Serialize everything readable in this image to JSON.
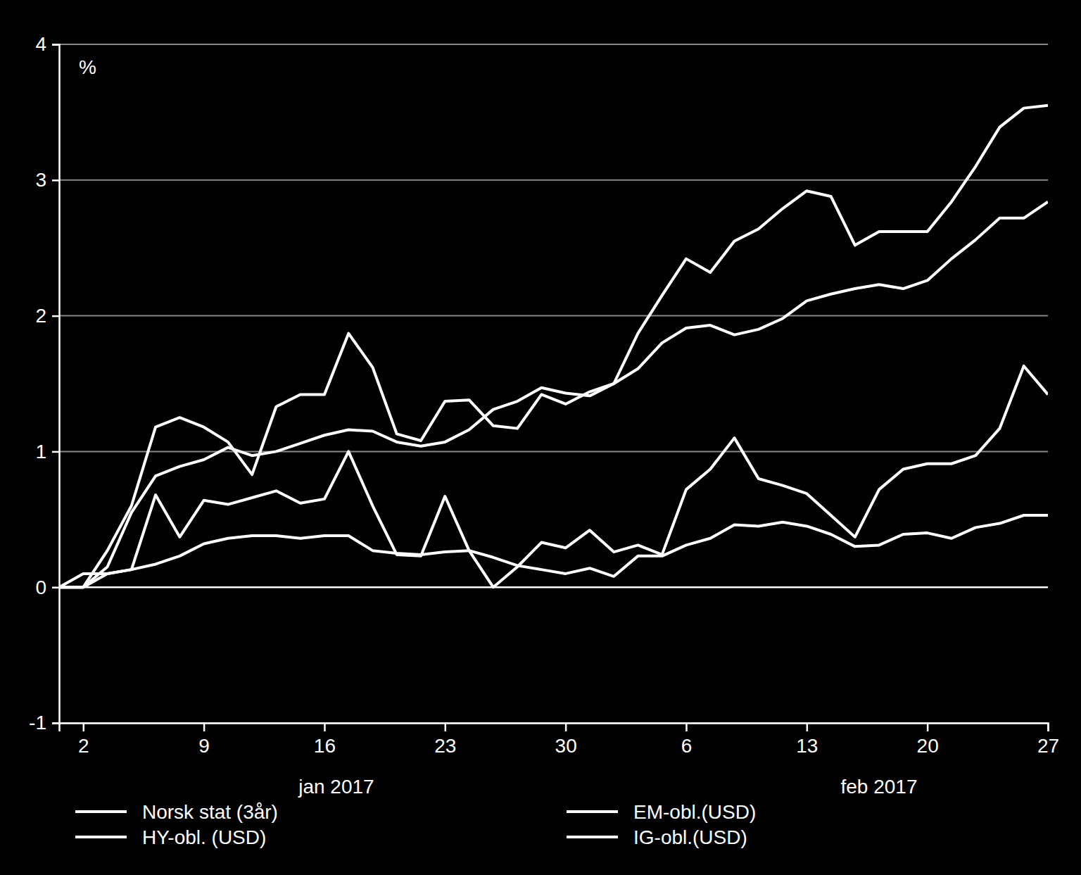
{
  "chart_data": {
    "type": "line",
    "ylabel": "%",
    "categories": [
      null,
      "2",
      null,
      null,
      null,
      null,
      "9",
      null,
      null,
      null,
      null,
      "16",
      null,
      null,
      null,
      null,
      "23",
      null,
      null,
      null,
      null,
      "30",
      null,
      null,
      null,
      null,
      "6",
      null,
      null,
      null,
      null,
      "13",
      null,
      null,
      null,
      null,
      "20",
      null,
      null,
      null,
      null,
      "27"
    ],
    "x_groups": [
      "jan 2017",
      "feb 2017"
    ],
    "ylim": [
      -1,
      4
    ],
    "yticks": [
      -1,
      0,
      1,
      2,
      3,
      4
    ],
    "grid": true,
    "legend": "bottom",
    "series": [
      {
        "name": "Norsk stat (3år)",
        "color": "#ffffff",
        "values": [
          0,
          0.1,
          0.1,
          0.13,
          0.17,
          0.23,
          0.32,
          0.36,
          0.38,
          0.38,
          0.36,
          0.38,
          0.38,
          0.27,
          0.25,
          0.24,
          0.26,
          0.27,
          0.22,
          0.16,
          0.13,
          0.1,
          0.14,
          0.08,
          0.23,
          0.23,
          0.31,
          0.36,
          0.46,
          0.45,
          0.48,
          0.45,
          0.39,
          0.3,
          0.31,
          0.39,
          0.4,
          0.36,
          0.44,
          0.47,
          0.53,
          0.53
        ]
      },
      {
        "name": "HY-obl. (USD)",
        "color": "#ffffff",
        "values": [
          0,
          0,
          0.15,
          0.55,
          0.82,
          0.89,
          0.94,
          1.03,
          0.97,
          1.0,
          1.06,
          1.12,
          1.16,
          1.15,
          1.07,
          1.04,
          1.07,
          1.16,
          1.31,
          1.37,
          1.47,
          1.43,
          1.41,
          1.5,
          1.61,
          1.8,
          1.91,
          1.93,
          1.86,
          1.9,
          1.98,
          2.11,
          2.16,
          2.2,
          2.23,
          2.2,
          2.26,
          2.42,
          2.56,
          2.72,
          2.72,
          2.84
        ]
      },
      {
        "name": "EM-obl.(USD)",
        "color": "#ffffff",
        "values": [
          0,
          0,
          0.27,
          0.6,
          1.18,
          1.25,
          1.18,
          1.07,
          0.83,
          1.33,
          1.42,
          1.42,
          1.87,
          1.62,
          1.13,
          1.08,
          1.37,
          1.38,
          1.19,
          1.17,
          1.42,
          1.35,
          1.44,
          1.5,
          1.87,
          2.15,
          2.42,
          2.32,
          2.55,
          2.64,
          2.79,
          2.92,
          2.88,
          2.52,
          2.62,
          2.62,
          2.62,
          2.84,
          3.1,
          3.39,
          3.53,
          3.55
        ]
      },
      {
        "name": "IG-obl.(USD)",
        "color": "#ffffff",
        "values": [
          0,
          0,
          0.1,
          0.13,
          0.68,
          0.37,
          0.64,
          0.61,
          0.66,
          0.71,
          0.62,
          0.65,
          1.0,
          0.6,
          0.24,
          0.23,
          0.67,
          0.27,
          0.0,
          0.15,
          0.33,
          0.29,
          0.42,
          0.26,
          0.31,
          0.24,
          0.72,
          0.87,
          1.1,
          0.8,
          0.75,
          0.69,
          0.53,
          0.37,
          0.72,
          0.87,
          0.91,
          0.91,
          0.97,
          1.17,
          1.63,
          1.42
        ]
      }
    ]
  }
}
